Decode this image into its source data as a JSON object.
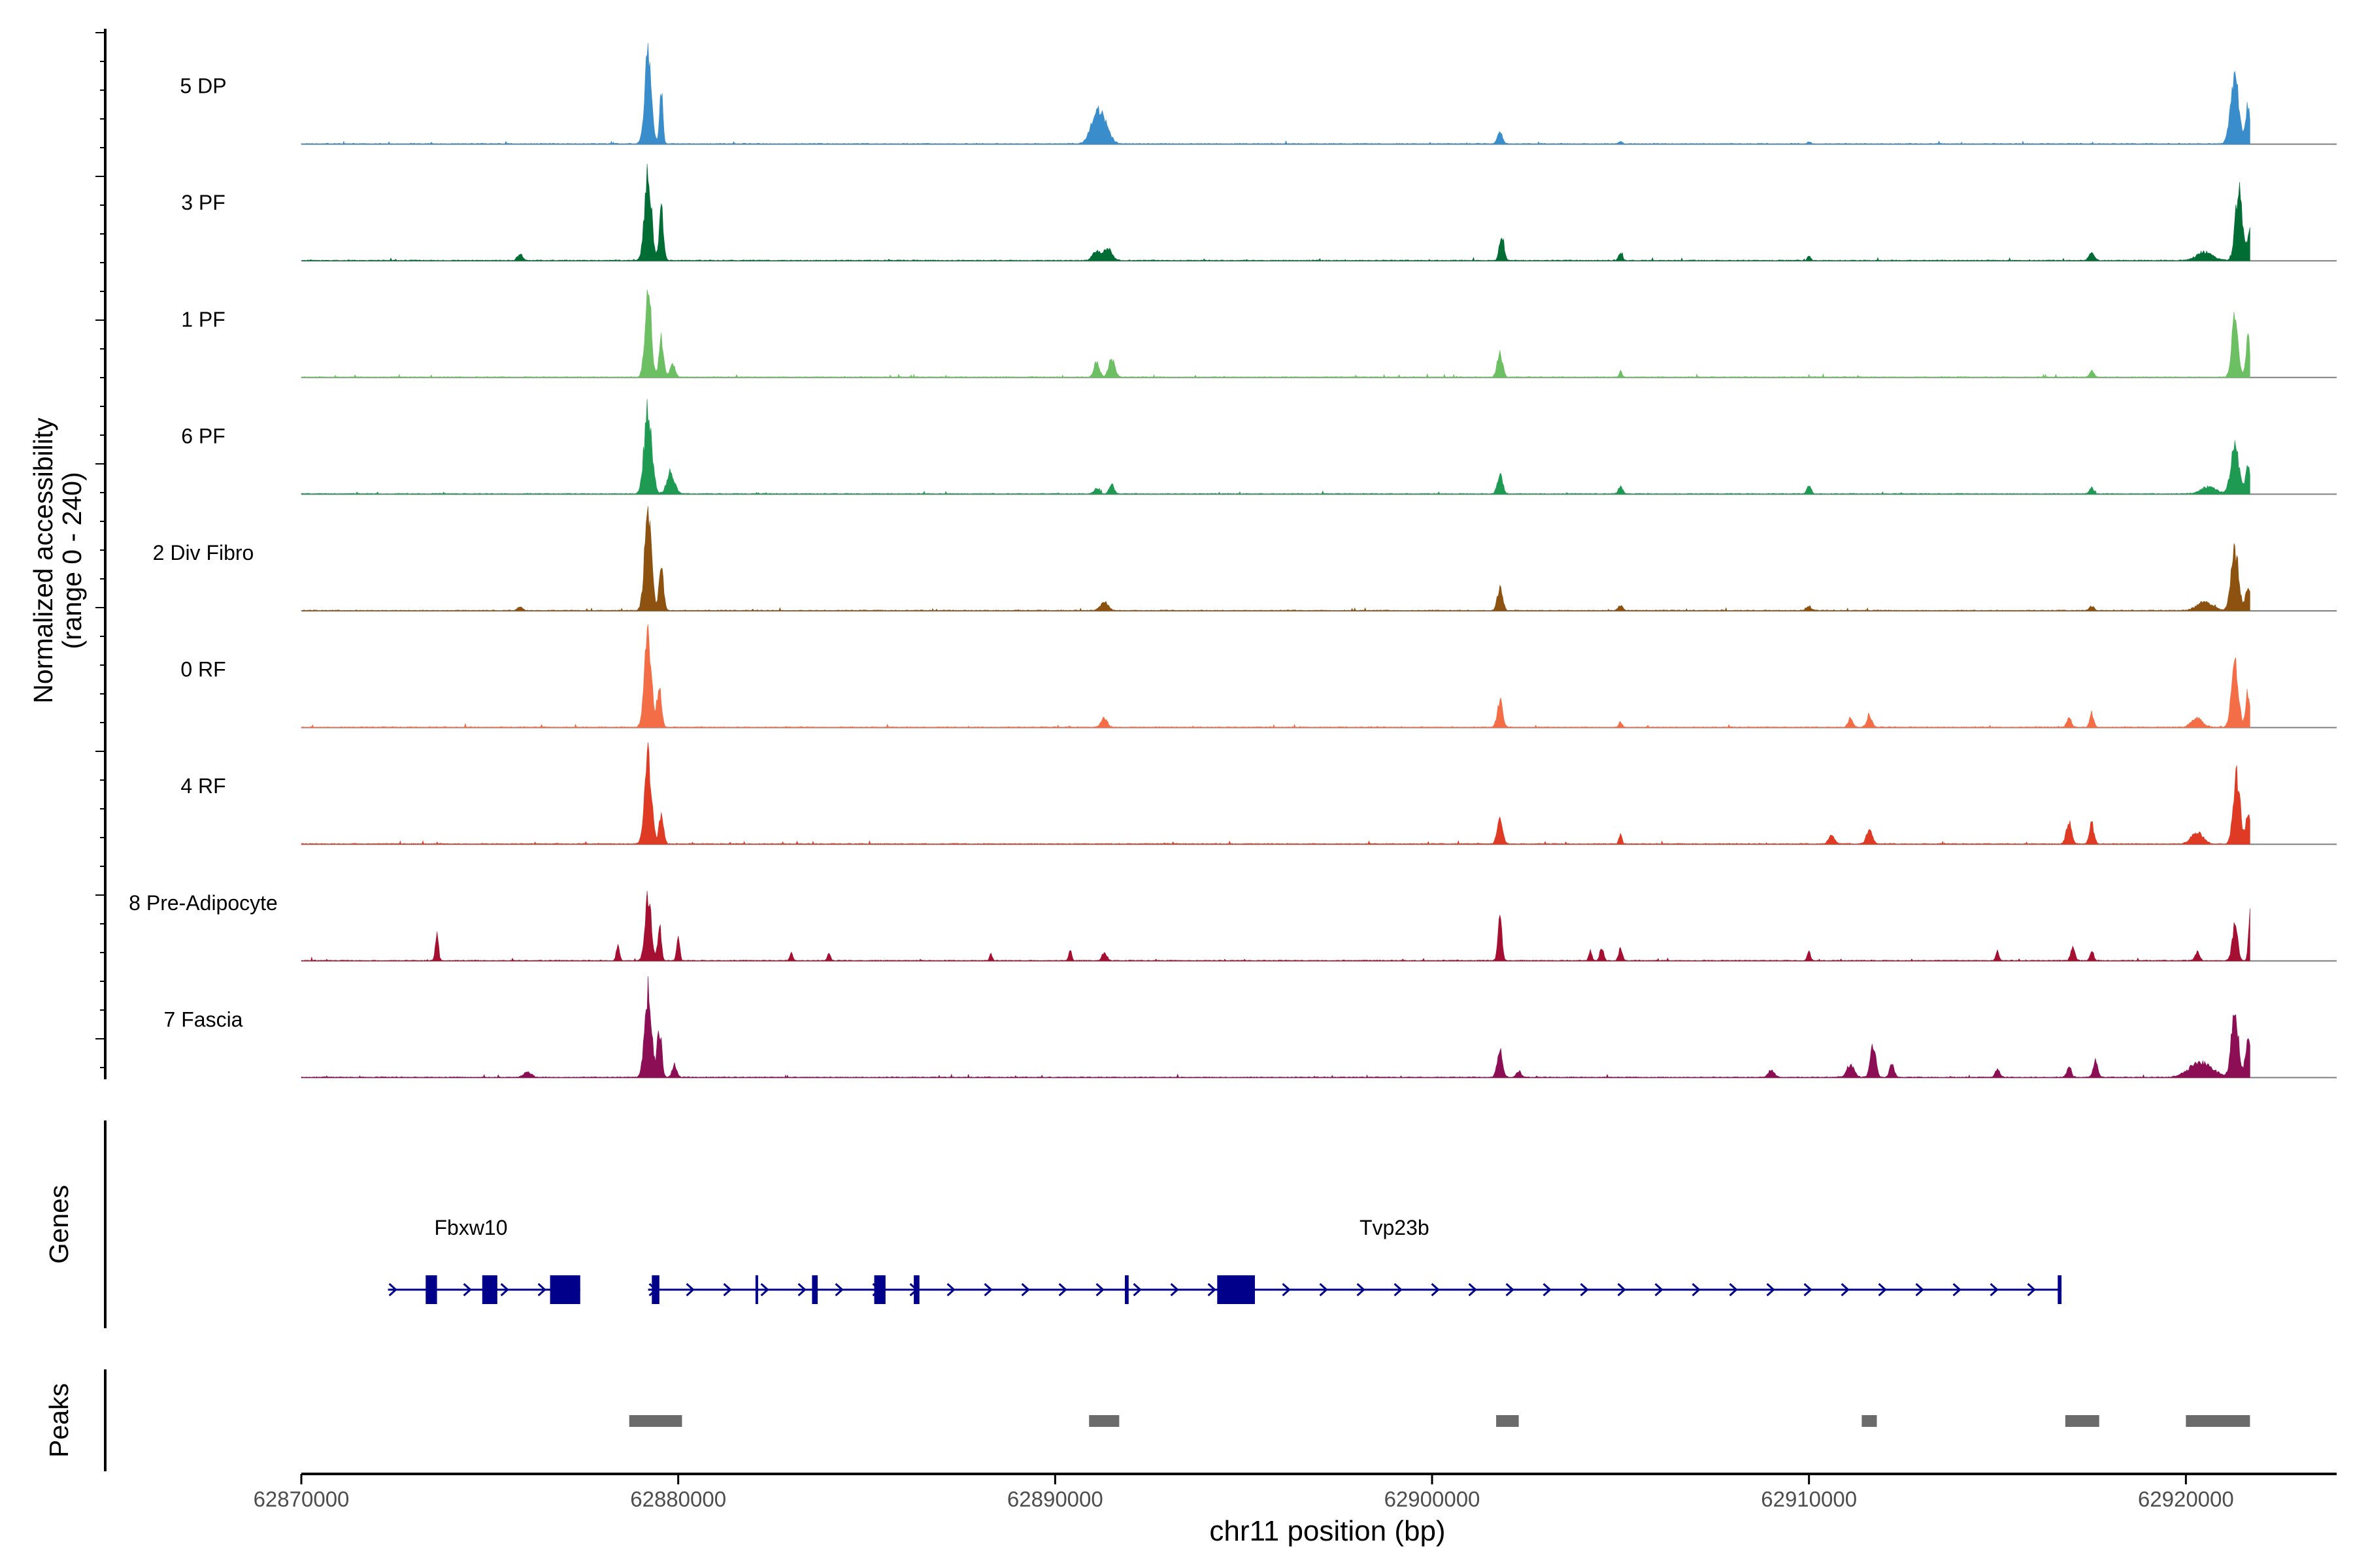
{
  "chart_data": {
    "type": "area",
    "chromosome": "chr11",
    "y_axis_label_line1": "Normalized accessibility",
    "y_axis_label_line2": "(range 0 - 240)",
    "y_range": [
      0,
      240
    ],
    "x_axis_label": "chr11 position (bp)",
    "x_range": [
      62870000,
      62924000
    ],
    "x_ticks": [
      "62870000",
      "62880000",
      "62890000",
      "62900000",
      "62910000",
      "62920000"
    ],
    "x_tick_values": [
      62870000,
      62880000,
      62890000,
      62900000,
      62910000,
      62920000
    ],
    "tracks": [
      {
        "name": "5 DP",
        "color": "#3a8dcb",
        "peaks": [
          [
            62879200,
            200,
            90
          ],
          [
            62879550,
            130,
            42
          ],
          [
            62891100,
            60,
            160
          ],
          [
            62891300,
            34,
            150
          ],
          [
            62901800,
            26,
            70
          ],
          [
            62905000,
            6,
            40
          ],
          [
            62910000,
            5,
            40
          ],
          [
            62921300,
            150,
            110
          ],
          [
            62921650,
            85,
            60
          ]
        ]
      },
      {
        "name": "3 PF",
        "color": "#006d35",
        "peaks": [
          [
            62875800,
            14,
            70
          ],
          [
            62879200,
            200,
            90
          ],
          [
            62879550,
            120,
            55
          ],
          [
            62891100,
            22,
            100
          ],
          [
            62891400,
            28,
            110
          ],
          [
            62901850,
            60,
            60
          ],
          [
            62905000,
            18,
            50
          ],
          [
            62910000,
            12,
            40
          ],
          [
            62917500,
            18,
            70
          ],
          [
            62921400,
            158,
            90
          ],
          [
            62921700,
            65,
            70
          ],
          [
            62920500,
            18,
            220
          ]
        ]
      },
      {
        "name": "1 PF",
        "color": "#6cbf62",
        "peaks": [
          [
            62879200,
            208,
            80
          ],
          [
            62879550,
            85,
            60
          ],
          [
            62879850,
            30,
            70
          ],
          [
            62891100,
            34,
            70
          ],
          [
            62891500,
            42,
            80
          ],
          [
            62901800,
            56,
            70
          ],
          [
            62905000,
            14,
            40
          ],
          [
            62917500,
            14,
            60
          ],
          [
            62921300,
            140,
            80
          ],
          [
            62921650,
            85,
            60
          ]
        ]
      },
      {
        "name": "6 PF",
        "color": "#1f9a52",
        "peaks": [
          [
            62879200,
            196,
            100
          ],
          [
            62879800,
            50,
            100
          ],
          [
            62891100,
            12,
            70
          ],
          [
            62891500,
            20,
            70
          ],
          [
            62901800,
            44,
            70
          ],
          [
            62905000,
            16,
            60
          ],
          [
            62910000,
            16,
            60
          ],
          [
            62917500,
            14,
            60
          ],
          [
            62920600,
            16,
            200
          ],
          [
            62921300,
            103,
            110
          ],
          [
            62921650,
            70,
            60
          ]
        ]
      },
      {
        "name": "2 Div Fibro",
        "color": "#8d520f",
        "peaks": [
          [
            62875800,
            10,
            60
          ],
          [
            62879200,
            225,
            90
          ],
          [
            62879550,
            90,
            60
          ],
          [
            62891300,
            20,
            100
          ],
          [
            62901800,
            50,
            70
          ],
          [
            62905000,
            12,
            60
          ],
          [
            62910000,
            10,
            60
          ],
          [
            62917500,
            10,
            60
          ],
          [
            62920500,
            20,
            200
          ],
          [
            62921300,
            135,
            100
          ],
          [
            62921650,
            60,
            60
          ]
        ]
      },
      {
        "name": "0 RF",
        "color": "#f36e46",
        "peaks": [
          [
            62879200,
            210,
            90
          ],
          [
            62879500,
            95,
            60
          ],
          [
            62891300,
            22,
            80
          ],
          [
            62901800,
            60,
            70
          ],
          [
            62905000,
            12,
            40
          ],
          [
            62911100,
            22,
            60
          ],
          [
            62911600,
            25,
            70
          ],
          [
            62916900,
            22,
            60
          ],
          [
            62917500,
            34,
            50
          ],
          [
            62920300,
            20,
            150
          ],
          [
            62921300,
            150,
            90
          ],
          [
            62921650,
            75,
            60
          ]
        ]
      },
      {
        "name": "4 RF",
        "color": "#de3a24",
        "peaks": [
          [
            62879200,
            200,
            90
          ],
          [
            62879550,
            70,
            60
          ],
          [
            62901800,
            56,
            70
          ],
          [
            62905000,
            22,
            40
          ],
          [
            62910600,
            18,
            80
          ],
          [
            62911600,
            30,
            80
          ],
          [
            62916900,
            52,
            70
          ],
          [
            62917500,
            48,
            60
          ],
          [
            62920300,
            28,
            150
          ],
          [
            62921350,
            150,
            90
          ],
          [
            62921650,
            65,
            60
          ]
        ]
      },
      {
        "name": "8 Pre-Adipocyte",
        "color": "#a50f31",
        "peaks": [
          [
            62873600,
            58,
            40
          ],
          [
            62878400,
            40,
            40
          ],
          [
            62879200,
            152,
            80
          ],
          [
            62879500,
            70,
            50
          ],
          [
            62880000,
            50,
            40
          ],
          [
            62883000,
            20,
            40
          ],
          [
            62884000,
            18,
            40
          ],
          [
            62888300,
            14,
            40
          ],
          [
            62890400,
            22,
            40
          ],
          [
            62891300,
            18,
            60
          ],
          [
            62901800,
            104,
            50
          ],
          [
            62904200,
            22,
            40
          ],
          [
            62904500,
            28,
            50
          ],
          [
            62905000,
            28,
            50
          ],
          [
            62910000,
            20,
            40
          ],
          [
            62915000,
            20,
            40
          ],
          [
            62917000,
            28,
            60
          ],
          [
            62917500,
            20,
            50
          ],
          [
            62920300,
            20,
            60
          ],
          [
            62921300,
            82,
            70
          ],
          [
            62921700,
            104,
            40
          ]
        ]
      },
      {
        "name": "7 Fascia",
        "color": "#8c0f56",
        "peaks": [
          [
            62876000,
            12,
            100
          ],
          [
            62879200,
            200,
            90
          ],
          [
            62879500,
            110,
            60
          ],
          [
            62879900,
            30,
            60
          ],
          [
            62901800,
            60,
            70
          ],
          [
            62902300,
            14,
            60
          ],
          [
            62909000,
            16,
            80
          ],
          [
            62911100,
            28,
            100
          ],
          [
            62911700,
            78,
            70
          ],
          [
            62912200,
            30,
            60
          ],
          [
            62915000,
            18,
            60
          ],
          [
            62916900,
            22,
            60
          ],
          [
            62917600,
            38,
            60
          ],
          [
            62920400,
            35,
            300
          ],
          [
            62921300,
            152,
            90
          ],
          [
            62921650,
            80,
            70
          ]
        ]
      }
    ],
    "genes_label": "Genes",
    "genes": [
      {
        "name": "Fbxw10",
        "start": 62872300,
        "end": 62877400,
        "strand": "+",
        "exons": [
          [
            62873300,
            62873600
          ],
          [
            62874800,
            62875200
          ],
          [
            62876600,
            62877400
          ]
        ]
      },
      {
        "name": "Tvp23b",
        "start": 62879200,
        "end": 62916700,
        "strand": "+",
        "exons": [
          [
            62879300,
            62879500
          ],
          [
            62882050,
            62882100
          ],
          [
            62883550,
            62883700
          ],
          [
            62885200,
            62885500
          ],
          [
            62886250,
            62886400
          ],
          [
            62891850,
            62891950
          ],
          [
            62894300,
            62895300
          ],
          [
            62916600,
            62916700
          ]
        ]
      }
    ],
    "peaks_label": "Peaks",
    "peak_regions": [
      [
        62878700,
        62880100
      ],
      [
        62890900,
        62891700
      ],
      [
        62901700,
        62902300
      ],
      [
        62911400,
        62911800
      ],
      [
        62916800,
        62917700
      ],
      [
        62920000,
        62921700
      ]
    ]
  }
}
